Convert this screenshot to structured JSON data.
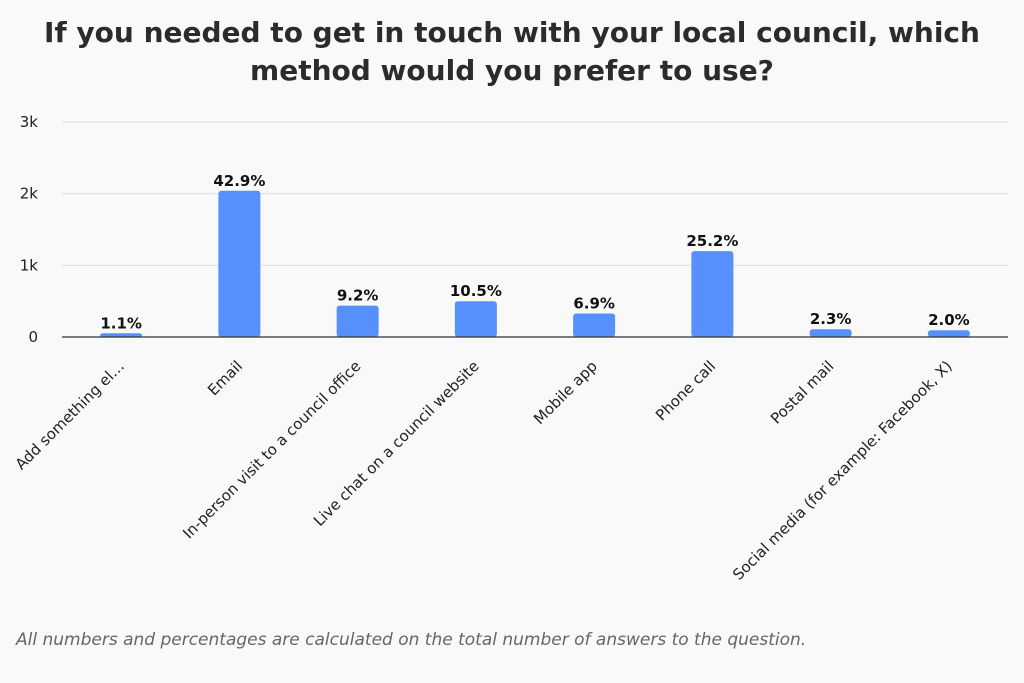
{
  "footnote": "All numbers and percentages are calculated on the total number of answers to the question.",
  "colors": {
    "bar": "#5590fc",
    "grid": "#dcdcdc",
    "axis": "#333333",
    "background": "#f9f9f9"
  },
  "chart_data": {
    "type": "bar",
    "title": "If you needed to get in touch with your local council, which method would you prefer to use?",
    "xlabel": "",
    "ylabel": "",
    "ylim": [
      0,
      3000
    ],
    "yticks": [
      0,
      1000,
      2000,
      3000
    ],
    "ytick_labels": [
      "0",
      "1k",
      "2k",
      "3k"
    ],
    "grid": true,
    "legend": "none",
    "categories": [
      "Add something el…",
      "Email",
      "In-person visit to a council office",
      "Live chat on a council website",
      "Mobile app",
      "Phone call",
      "Postal mail",
      "Social media (for example: Facebook, X)"
    ],
    "values": [
      52,
      2040,
      437,
      499,
      328,
      1198,
      109,
      95
    ],
    "data_labels": [
      "1.1%",
      "42.9%",
      "9.2%",
      "10.5%",
      "6.9%",
      "25.2%",
      "2.3%",
      "2.0%"
    ]
  }
}
